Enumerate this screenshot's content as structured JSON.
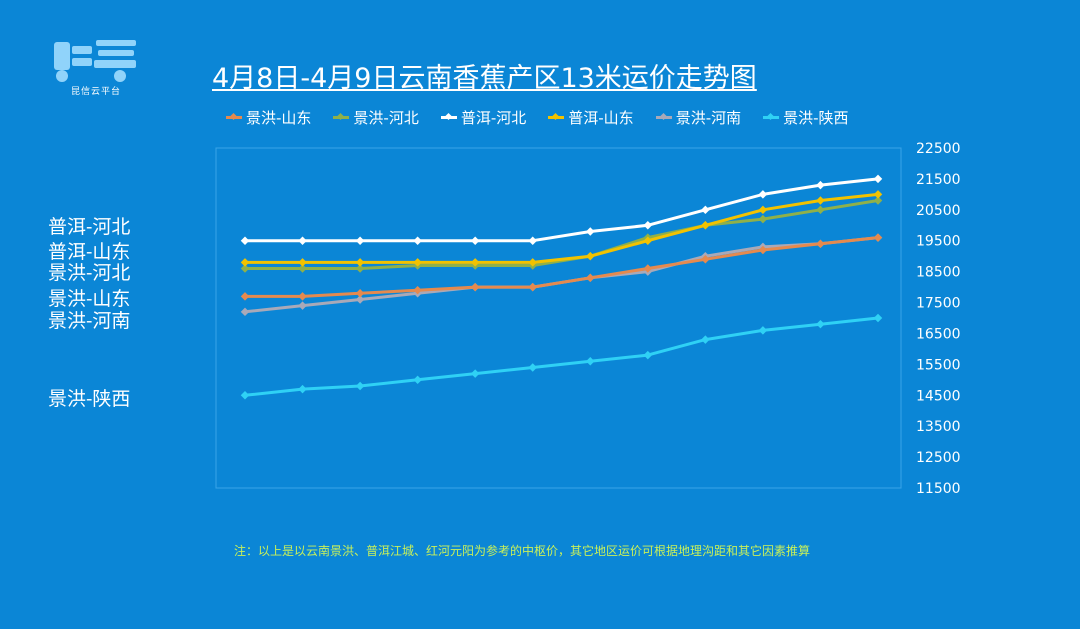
{
  "logo": {
    "icon": "truck-logo-icon",
    "text": "昆信云平台"
  },
  "chart_data": {
    "type": "line",
    "title": "4月8日-4月9日云南香蕉产区13米运价走势图",
    "xlabel": "",
    "ylabel": "",
    "ylim": [
      11500,
      22500
    ],
    "yticks": [
      22500,
      21500,
      20500,
      19500,
      18500,
      17500,
      16500,
      15500,
      14500,
      13500,
      12500,
      11500
    ],
    "y_axis_position": "right",
    "grid": false,
    "legend_position": "top",
    "x": [
      1,
      2,
      3,
      4,
      5,
      6,
      7,
      8,
      9,
      10,
      11,
      12
    ],
    "series": [
      {
        "name": "景洪-山东",
        "color": "#e58a4e",
        "values": [
          17700,
          17700,
          17800,
          17900,
          18000,
          18000,
          18300,
          18600,
          18900,
          19200,
          19400,
          19600
        ]
      },
      {
        "name": "景洪-河北",
        "color": "#8fb04a",
        "values": [
          18600,
          18600,
          18600,
          18700,
          18700,
          18700,
          19000,
          19600,
          20000,
          20200,
          20500,
          20800
        ]
      },
      {
        "name": "普洱-河北",
        "color": "#ffffff",
        "values": [
          19500,
          19500,
          19500,
          19500,
          19500,
          19500,
          19800,
          20000,
          20500,
          21000,
          21300,
          21500
        ]
      },
      {
        "name": "普洱-山东",
        "color": "#f2c200",
        "values": [
          18800,
          18800,
          18800,
          18800,
          18800,
          18800,
          19000,
          19500,
          20000,
          20500,
          20800,
          21000
        ]
      },
      {
        "name": "景洪-河南",
        "color": "#a9a9b8",
        "values": [
          17200,
          17400,
          17600,
          17800,
          18000,
          18000,
          18300,
          18500,
          19000,
          19300,
          19400,
          19600
        ]
      },
      {
        "name": "景洪-陕西",
        "color": "#2fd1f5",
        "values": [
          14500,
          14700,
          14800,
          15000,
          15200,
          15400,
          15600,
          15800,
          16300,
          16600,
          16800,
          17000
        ]
      }
    ]
  },
  "side_labels": [
    {
      "text": "普洱-河北",
      "top": 0
    },
    {
      "text": "普洱-山东",
      "top": 0
    },
    {
      "text": "景洪-河北",
      "top": 0
    },
    {
      "text": "景洪-山东",
      "top": 0
    },
    {
      "text": "景洪-河南",
      "top": 0
    },
    {
      "text": "景洪-陕西",
      "top": 0
    }
  ],
  "note": "注：以上是以云南景洪、普洱江城、红河元阳为参考的中枢价，其它地区运价可根据地理沟距和其它因素推算"
}
